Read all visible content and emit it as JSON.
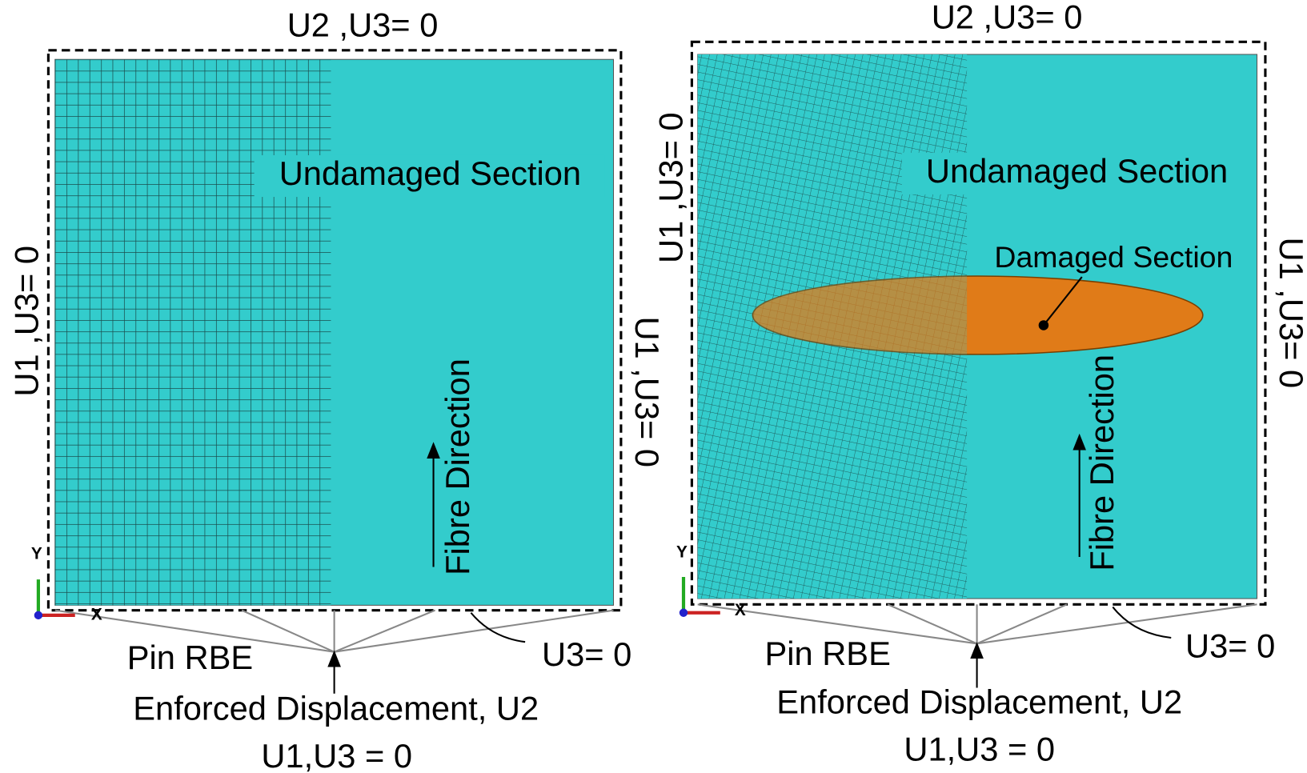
{
  "panels": [
    {
      "top_bc": "U2 ,U3= 0",
      "left_bc": "U1 ,U3= 0",
      "right_bc": "U1 ,U3= 0",
      "region_label": "Undamaged Section",
      "fibre_label": "Fibre Direction",
      "pin_label": "Pin RBE",
      "load_label": "Enforced Displacement, U2",
      "load_bc": "U1,U3 = 0",
      "u3_label": "U3= 0",
      "axis_y": "Y",
      "axis_x": "X"
    },
    {
      "top_bc": "U2 ,U3= 0",
      "left_bc": "U1 ,U3= 0",
      "right_bc": "U1 ,U3= 0",
      "region_label": "Undamaged Section",
      "damaged_label": "Damaged Section",
      "fibre_label": "Fibre Direction",
      "pin_label": "Pin RBE",
      "load_label": "Enforced Displacement, U2",
      "load_bc": "U1,U3 = 0",
      "u3_label": "U3= 0",
      "axis_y": "Y",
      "axis_x": "X"
    }
  ]
}
